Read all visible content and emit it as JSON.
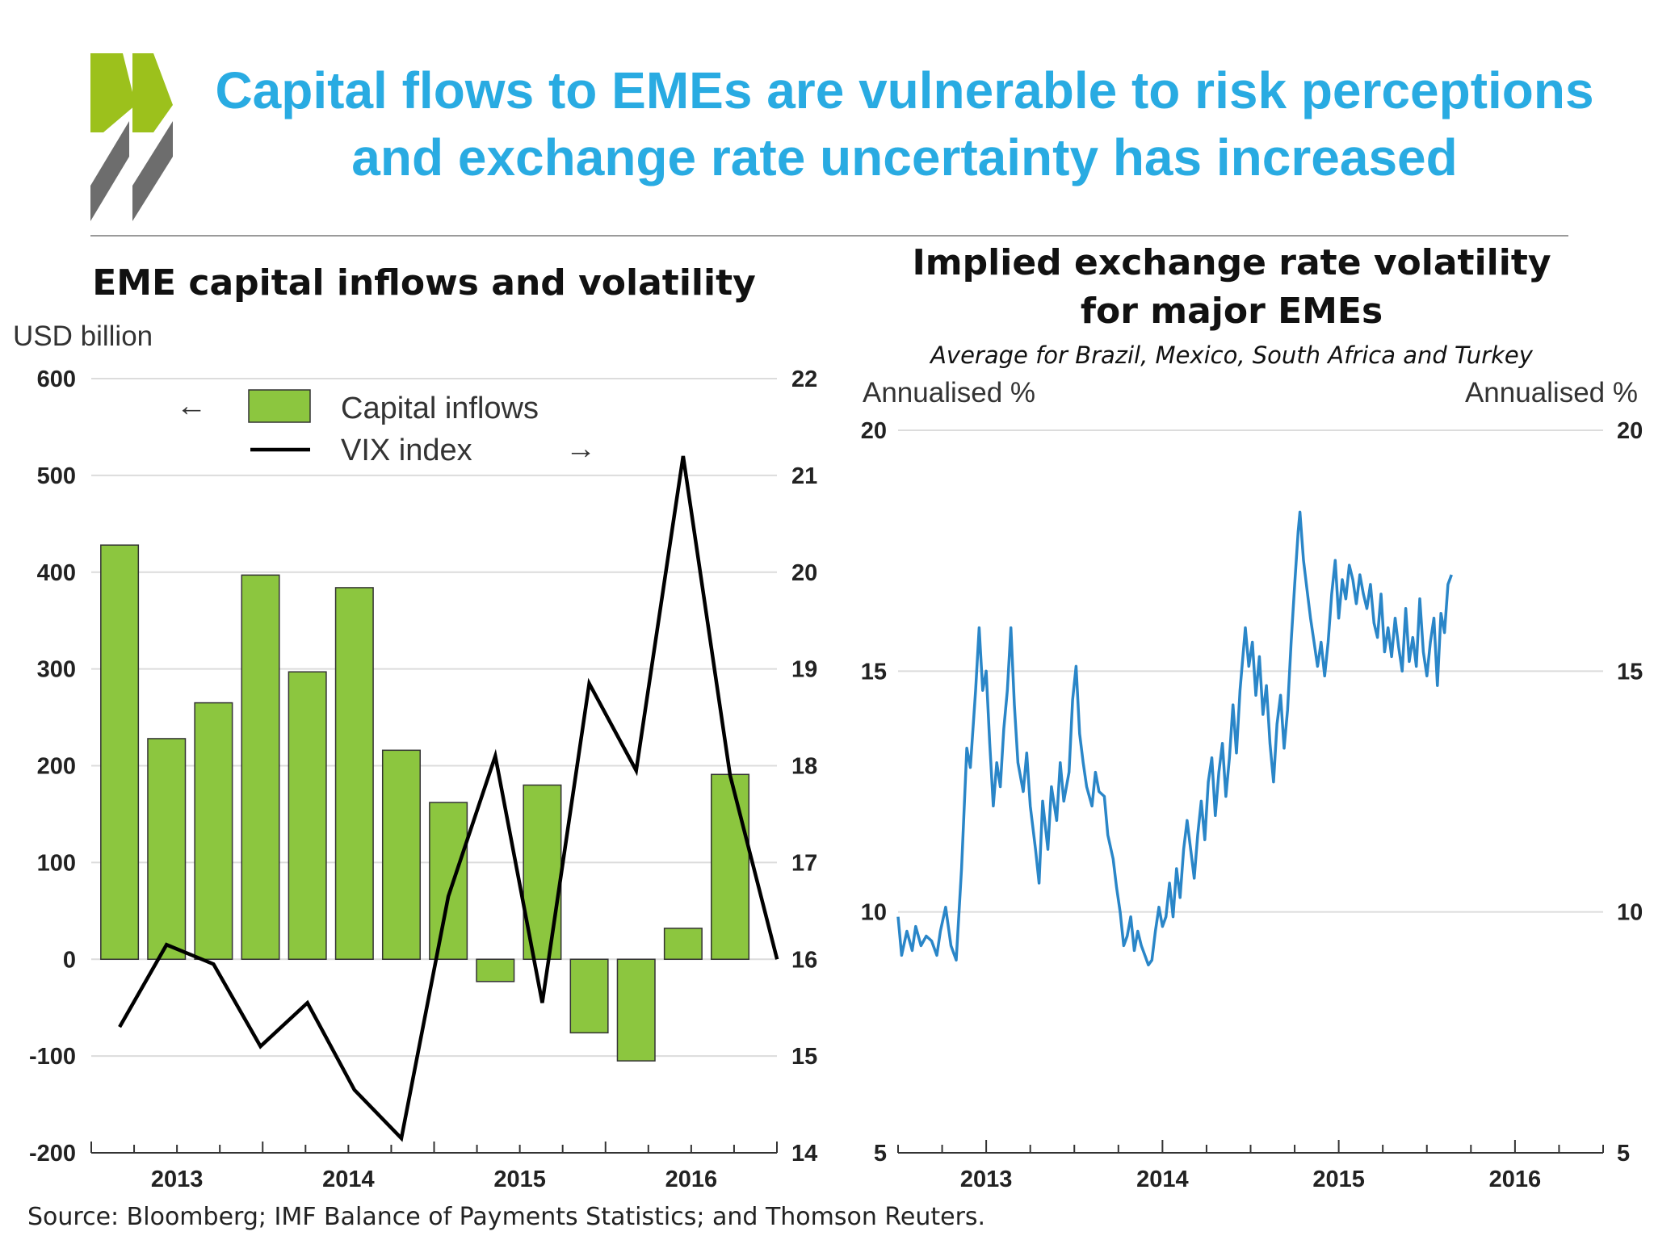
{
  "title_line1": "Capital flows to EMEs are vulnerable to risk perceptions",
  "title_line2": "and exchange rate uncertainty has increased",
  "colors": {
    "title": "#29abe2",
    "logo_green": "#9cc11c",
    "logo_gray": "#6d6d6d",
    "bar": "#8cc63f",
    "line_left": "#000000",
    "line_right": "#2a86c8"
  },
  "source": "Source: Bloomberg; IMF Balance of Payments Statistics; and Thomson Reuters.",
  "chart_data": [
    {
      "type": "bar",
      "title": "EME capital inflows and volatility",
      "left_unit": "USD billion",
      "left_ticks": [
        "600",
        "500",
        "400",
        "300",
        "200",
        "100",
        "0",
        "-100",
        "-200"
      ],
      "right_ticks": [
        "22",
        "21",
        "20",
        "19",
        "18",
        "17",
        "16",
        "15",
        "14"
      ],
      "ylim_left": [
        -200,
        600
      ],
      "ylim_right": [
        14,
        22
      ],
      "x_labels": [
        "2013",
        "2014",
        "2015",
        "2016"
      ],
      "legend": {
        "bar_label": "Capital inflows",
        "line_label": "VIX index",
        "left_arrow": "←",
        "right_arrow": "→"
      },
      "series": [
        {
          "name": "Capital inflows",
          "axis": "left",
          "values": [
            428,
            228,
            265,
            397,
            297,
            384,
            216,
            162,
            -23,
            180,
            -76,
            -105,
            32,
            191
          ]
        },
        {
          "name": "VIX index",
          "axis": "right",
          "values": [
            15.3,
            16.15,
            15.95,
            15.1,
            15.55,
            14.65,
            14.15,
            16.65,
            18.1,
            15.55,
            18.85,
            17.95,
            21.2,
            17.9,
            16.0
          ]
        }
      ]
    },
    {
      "type": "line",
      "title_line1": "Implied exchange rate volatility",
      "title_line2": "for major EMEs",
      "subtitle": "Average for Brazil, Mexico, South Africa and Turkey",
      "left_unit": "Annualised %",
      "right_unit": "Annualised %",
      "ticks": [
        "20",
        "15",
        "10",
        "5"
      ],
      "ylim": [
        5,
        20
      ],
      "xlim": [
        2012.5,
        2016.5
      ],
      "x_labels": [
        "2013",
        "2014",
        "2015",
        "2016"
      ],
      "series": [
        {
          "name": "Implied volatility",
          "points": [
            [
              2012.5,
              9.9
            ],
            [
              2012.52,
              9.1
            ],
            [
              2012.55,
              9.6
            ],
            [
              2012.58,
              9.2
            ],
            [
              2012.6,
              9.7
            ],
            [
              2012.63,
              9.3
            ],
            [
              2012.66,
              9.5
            ],
            [
              2012.69,
              9.4
            ],
            [
              2012.72,
              9.1
            ],
            [
              2012.74,
              9.6
            ],
            [
              2012.77,
              10.1
            ],
            [
              2012.8,
              9.3
            ],
            [
              2012.83,
              9.0
            ],
            [
              2012.86,
              10.9
            ],
            [
              2012.89,
              13.4
            ],
            [
              2012.91,
              13.0
            ],
            [
              2012.94,
              14.6
            ],
            [
              2012.96,
              15.9
            ],
            [
              2012.98,
              14.6
            ],
            [
              2013.0,
              15.0
            ],
            [
              2013.02,
              13.5
            ],
            [
              2013.04,
              12.2
            ],
            [
              2013.06,
              13.1
            ],
            [
              2013.08,
              12.6
            ],
            [
              2013.1,
              13.8
            ],
            [
              2013.12,
              14.6
            ],
            [
              2013.14,
              15.9
            ],
            [
              2013.16,
              14.3
            ],
            [
              2013.18,
              13.1
            ],
            [
              2013.21,
              12.5
            ],
            [
              2013.23,
              13.3
            ],
            [
              2013.25,
              12.2
            ],
            [
              2013.28,
              11.3
            ],
            [
              2013.3,
              10.6
            ],
            [
              2013.32,
              12.3
            ],
            [
              2013.35,
              11.3
            ],
            [
              2013.37,
              12.6
            ],
            [
              2013.4,
              11.9
            ],
            [
              2013.42,
              13.1
            ],
            [
              2013.44,
              12.3
            ],
            [
              2013.47,
              12.9
            ],
            [
              2013.49,
              14.4
            ],
            [
              2013.51,
              15.1
            ],
            [
              2013.53,
              13.7
            ],
            [
              2013.55,
              13.1
            ],
            [
              2013.57,
              12.6
            ],
            [
              2013.6,
              12.2
            ],
            [
              2013.62,
              12.9
            ],
            [
              2013.64,
              12.5
            ],
            [
              2013.67,
              12.4
            ],
            [
              2013.69,
              11.6
            ],
            [
              2013.72,
              11.1
            ],
            [
              2013.74,
              10.5
            ],
            [
              2013.76,
              10.0
            ],
            [
              2013.78,
              9.3
            ],
            [
              2013.8,
              9.5
            ],
            [
              2013.82,
              9.9
            ],
            [
              2013.84,
              9.2
            ],
            [
              2013.86,
              9.6
            ],
            [
              2013.88,
              9.3
            ],
            [
              2013.9,
              9.1
            ],
            [
              2013.92,
              8.9
            ],
            [
              2013.94,
              9.0
            ],
            [
              2013.96,
              9.6
            ],
            [
              2013.98,
              10.1
            ],
            [
              2014.0,
              9.7
            ],
            [
              2014.02,
              9.9
            ],
            [
              2014.04,
              10.6
            ],
            [
              2014.06,
              9.9
            ],
            [
              2014.08,
              10.9
            ],
            [
              2014.1,
              10.3
            ],
            [
              2014.12,
              11.3
            ],
            [
              2014.14,
              11.9
            ],
            [
              2014.16,
              11.3
            ],
            [
              2014.18,
              10.7
            ],
            [
              2014.2,
              11.6
            ],
            [
              2014.22,
              12.3
            ],
            [
              2014.24,
              11.5
            ],
            [
              2014.26,
              12.7
            ],
            [
              2014.28,
              13.2
            ],
            [
              2014.3,
              12.0
            ],
            [
              2014.32,
              12.9
            ],
            [
              2014.34,
              13.5
            ],
            [
              2014.36,
              12.4
            ],
            [
              2014.38,
              13.2
            ],
            [
              2014.4,
              14.3
            ],
            [
              2014.42,
              13.3
            ],
            [
              2014.44,
              14.6
            ],
            [
              2014.47,
              15.9
            ],
            [
              2014.49,
              15.1
            ],
            [
              2014.51,
              15.6
            ],
            [
              2014.53,
              14.5
            ],
            [
              2014.55,
              15.3
            ],
            [
              2014.57,
              14.1
            ],
            [
              2014.59,
              14.7
            ],
            [
              2014.61,
              13.5
            ],
            [
              2014.63,
              12.7
            ],
            [
              2014.65,
              13.9
            ],
            [
              2014.67,
              14.5
            ],
            [
              2014.69,
              13.4
            ],
            [
              2014.71,
              14.2
            ],
            [
              2014.73,
              15.6
            ],
            [
              2014.75,
              16.8
            ],
            [
              2014.77,
              17.9
            ],
            [
              2014.78,
              18.3
            ],
            [
              2014.8,
              17.3
            ],
            [
              2014.82,
              16.7
            ],
            [
              2014.84,
              16.1
            ],
            [
              2014.86,
              15.6
            ],
            [
              2014.88,
              15.1
            ],
            [
              2014.9,
              15.6
            ],
            [
              2014.92,
              14.9
            ],
            [
              2014.94,
              15.6
            ],
            [
              2014.96,
              16.6
            ],
            [
              2014.98,
              17.3
            ],
            [
              2015.0,
              16.1
            ],
            [
              2015.02,
              16.9
            ],
            [
              2015.04,
              16.5
            ],
            [
              2015.06,
              17.2
            ],
            [
              2015.08,
              16.9
            ],
            [
              2015.1,
              16.4
            ],
            [
              2015.12,
              17.0
            ],
            [
              2015.14,
              16.6
            ],
            [
              2015.16,
              16.3
            ],
            [
              2015.18,
              16.8
            ],
            [
              2015.2,
              16.0
            ],
            [
              2015.22,
              15.7
            ],
            [
              2015.24,
              16.6
            ],
            [
              2015.26,
              15.4
            ],
            [
              2015.28,
              15.9
            ],
            [
              2015.3,
              15.3
            ],
            [
              2015.32,
              16.1
            ],
            [
              2015.34,
              15.5
            ],
            [
              2015.36,
              15.0
            ],
            [
              2015.38,
              16.3
            ],
            [
              2015.4,
              15.2
            ],
            [
              2015.42,
              15.7
            ],
            [
              2015.44,
              15.1
            ],
            [
              2015.46,
              16.5
            ],
            [
              2015.48,
              15.4
            ],
            [
              2015.5,
              14.9
            ],
            [
              2015.52,
              15.6
            ],
            [
              2015.54,
              16.1
            ],
            [
              2015.56,
              14.7
            ],
            [
              2015.58,
              16.2
            ],
            [
              2015.6,
              15.8
            ],
            [
              2015.62,
              16.8
            ],
            [
              2015.64,
              17.0
            ]
          ]
        }
      ]
    }
  ]
}
